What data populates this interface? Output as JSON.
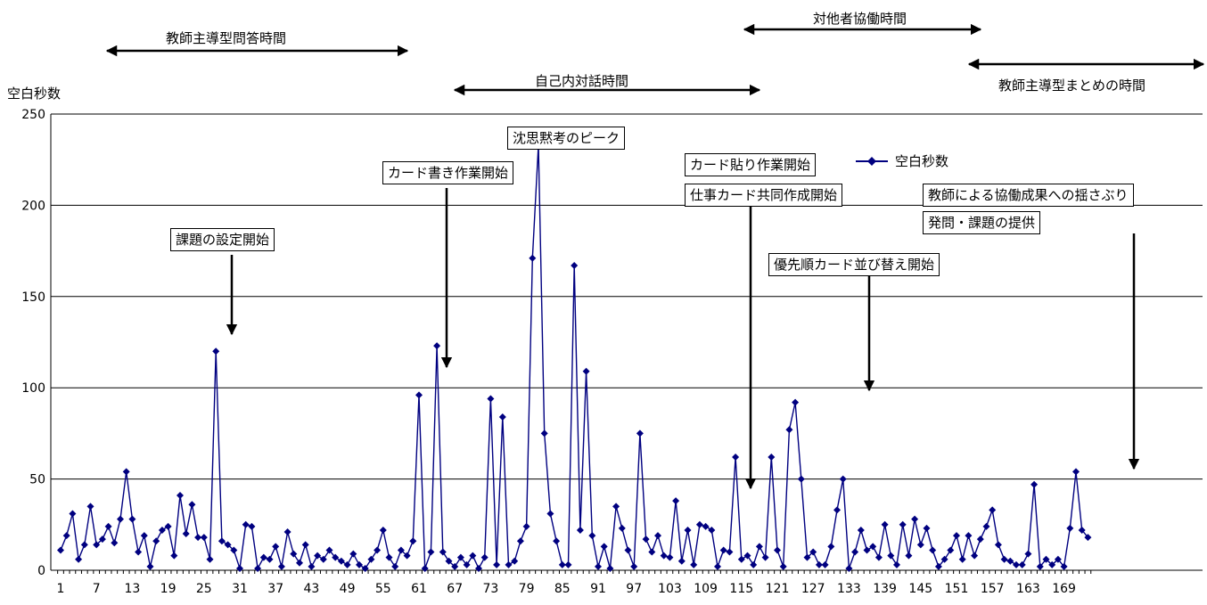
{
  "chart_data": {
    "type": "line",
    "ylabel": "空白秒数",
    "ylim": [
      0,
      250
    ],
    "yticks": [
      0,
      50,
      100,
      150,
      200,
      250
    ],
    "grid": true,
    "legend_position": "top-right",
    "marker": "diamond",
    "color": "#000080",
    "x_tick_labels": [
      "1",
      "7",
      "13",
      "19",
      "25",
      "31",
      "37",
      "43",
      "49",
      "55",
      "61",
      "67",
      "73",
      "79",
      "85",
      "91",
      "97",
      "103",
      "109",
      "115",
      "121",
      "127",
      "133",
      "139",
      "145",
      "151",
      "157",
      "163",
      "169"
    ],
    "series": [
      {
        "name": "空白秒数",
        "values": [
          11,
          19,
          31,
          6,
          14,
          35,
          14,
          17,
          24,
          15,
          28,
          54,
          28,
          10,
          19,
          2,
          16,
          22,
          24,
          8,
          41,
          20,
          36,
          18,
          18,
          6,
          120,
          16,
          14,
          11,
          1,
          25,
          24,
          1,
          7,
          6,
          13,
          2,
          21,
          9,
          4,
          14,
          2,
          8,
          6,
          11,
          7,
          5,
          3,
          9,
          3,
          1,
          6,
          11,
          22,
          7,
          2,
          11,
          8,
          16,
          96,
          1,
          10,
          123,
          10,
          5,
          2,
          7,
          3,
          8,
          1,
          7,
          94,
          3,
          84,
          3,
          5,
          16,
          24,
          171,
          233,
          75,
          31,
          16,
          3,
          3,
          167,
          22,
          109,
          19,
          2,
          13,
          1,
          35,
          23,
          11,
          2,
          75,
          17,
          10,
          19,
          8,
          7,
          38,
          5,
          22,
          3,
          25,
          24,
          22,
          2,
          11,
          10,
          62,
          6,
          8,
          3,
          13,
          7,
          62,
          11,
          2,
          77,
          92,
          50,
          7,
          10,
          3,
          3,
          13,
          33,
          50,
          1,
          10,
          22,
          11,
          13,
          7,
          25,
          8,
          3,
          25,
          8,
          28,
          14,
          23,
          11,
          2,
          6,
          11,
          19,
          6,
          19,
          8,
          17,
          24,
          33,
          14,
          6,
          5,
          3,
          3,
          9,
          47,
          2,
          6,
          3,
          6,
          2,
          23,
          54,
          22,
          18
        ]
      }
    ],
    "annotations": [
      "課題の設定開始",
      "カード書き作業開始",
      "沈思黙考のピーク",
      "カード貼り作業開始",
      "仕事カード共同作成開始",
      "優先順カード並び替え開始",
      "教師による協働成果への揺さぶり",
      "発問・課題の提供"
    ],
    "phases": [
      "教師主導型問答時間",
      "自己内対話時間",
      "対他者協働時間",
      "教師主導型まとめの時間"
    ]
  }
}
